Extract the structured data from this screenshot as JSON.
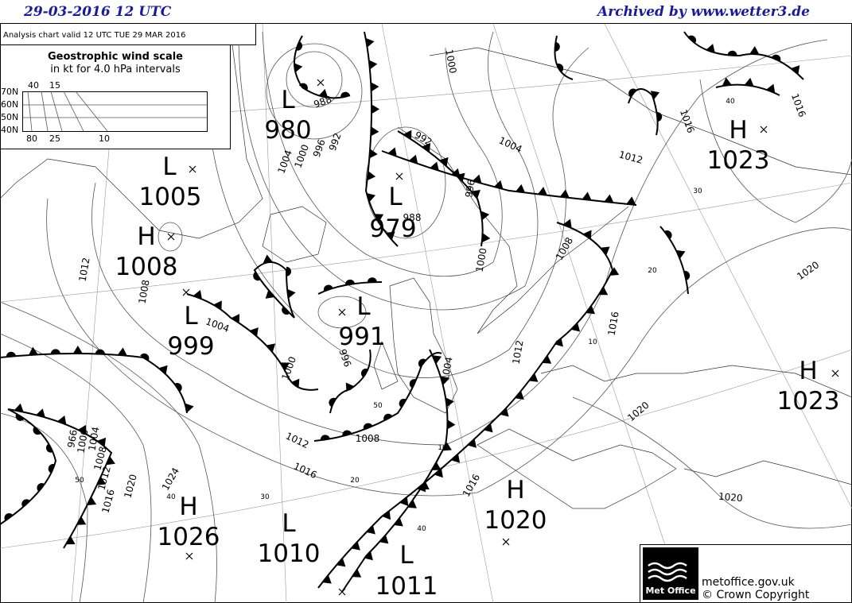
{
  "header": {
    "date": "29-03-2016  12 UTC",
    "archive": "Archived by www.wetter3.de"
  },
  "analysis_label": "Analysis chart  valid 12 UTC TUE 29  MAR 2016",
  "wind_scale": {
    "title": "Geostrophic wind scale",
    "subtitle": "in kt for 4.0 hPa intervals",
    "latitudes": [
      "70N",
      "60N",
      "50N",
      "40N"
    ],
    "top_labels": [
      "40",
      "15"
    ],
    "bottom_labels": [
      "80",
      "25",
      "10"
    ]
  },
  "pressure_centers": [
    {
      "kind": "L",
      "value": "980"
    },
    {
      "kind": "L",
      "value": "1005"
    },
    {
      "kind": "H",
      "value": "1008"
    },
    {
      "kind": "L",
      "value": "999"
    },
    {
      "kind": "L",
      "value": "979"
    },
    {
      "kind": "L",
      "value": "991"
    },
    {
      "kind": "H",
      "value": "1023"
    },
    {
      "kind": "H",
      "value": "1023"
    },
    {
      "kind": "H",
      "value": "1026"
    },
    {
      "kind": "L",
      "value": "1010"
    },
    {
      "kind": "H",
      "value": "1020"
    },
    {
      "kind": "L",
      "value": "1011"
    }
  ],
  "isobar_labels": [
    "988",
    "992",
    "996",
    "1000",
    "1004",
    "1012",
    "1008",
    "1004",
    "1000",
    "996",
    "1012",
    "1016",
    "1024",
    "1020",
    "1016",
    "1012",
    "1008",
    "1004",
    "1000",
    "966",
    "1008",
    "1004",
    "1012",
    "1016",
    "1008",
    "1000",
    "996",
    "1004",
    "1012",
    "1016",
    "1016",
    "1020",
    "1020",
    "1020",
    "1016",
    "1000",
    "992",
    "988"
  ],
  "wind_labels": [
    "50",
    "40",
    "30",
    "20",
    "10",
    "40",
    "50",
    "10",
    "20",
    "30",
    "40"
  ],
  "footer": {
    "logo": "Met Office",
    "site": "metoffice.gov.uk",
    "copyright": "© Crown Copyright"
  }
}
